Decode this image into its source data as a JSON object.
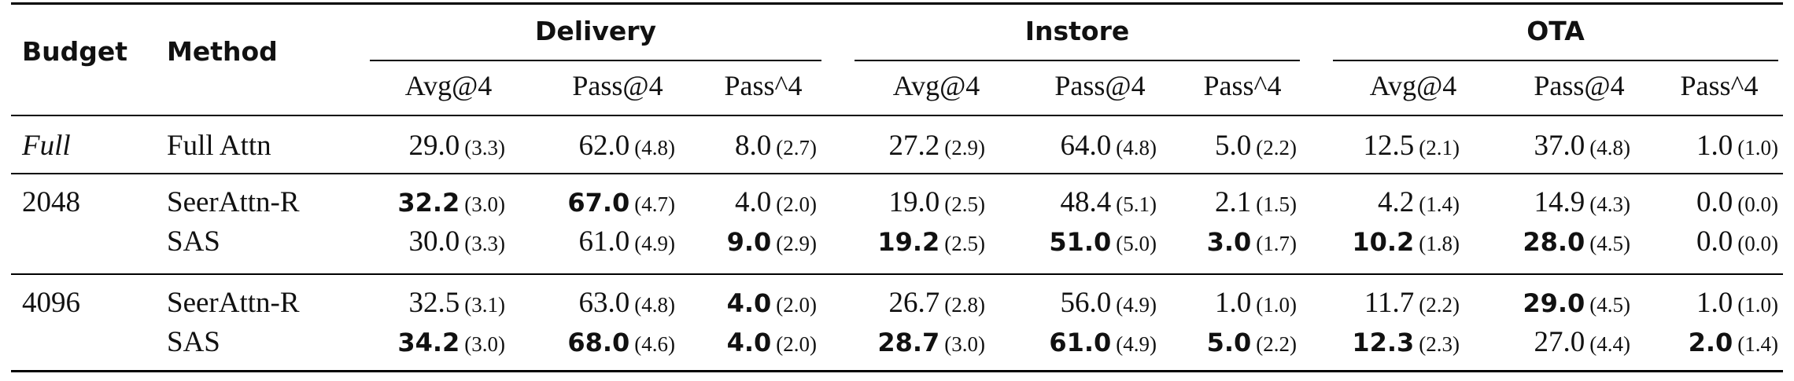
{
  "headers": {
    "budget": "Budget",
    "method": "Method",
    "groups": [
      "Delivery",
      "Instore",
      "OTA"
    ],
    "metrics": [
      "Avg@4",
      "Pass@4",
      "Pass^4"
    ]
  },
  "rows": [
    {
      "budget": "Full",
      "method": "Full Attn",
      "cells": [
        {
          "v": "29.0",
          "se": "(3.3)",
          "b": false
        },
        {
          "v": "62.0",
          "se": "(4.8)",
          "b": false
        },
        {
          "v": "8.0",
          "se": "(2.7)",
          "b": false
        },
        {
          "v": "27.2",
          "se": "(2.9)",
          "b": false
        },
        {
          "v": "64.0",
          "se": "(4.8)",
          "b": false
        },
        {
          "v": "5.0",
          "se": "(2.2)",
          "b": false
        },
        {
          "v": "12.5",
          "se": "(2.1)",
          "b": false
        },
        {
          "v": "37.0",
          "se": "(4.8)",
          "b": false
        },
        {
          "v": "1.0",
          "se": "(1.0)",
          "b": false
        }
      ]
    },
    {
      "budget": "2048",
      "method": "SeerAttn-R",
      "cells": [
        {
          "v": "32.2",
          "se": "(3.0)",
          "b": true
        },
        {
          "v": "67.0",
          "se": "(4.7)",
          "b": true
        },
        {
          "v": "4.0",
          "se": "(2.0)",
          "b": false
        },
        {
          "v": "19.0",
          "se": "(2.5)",
          "b": false
        },
        {
          "v": "48.4",
          "se": "(5.1)",
          "b": false
        },
        {
          "v": "2.1",
          "se": "(1.5)",
          "b": false
        },
        {
          "v": "4.2",
          "se": "(1.4)",
          "b": false
        },
        {
          "v": "14.9",
          "se": "(4.3)",
          "b": false
        },
        {
          "v": "0.0",
          "se": "(0.0)",
          "b": false
        }
      ]
    },
    {
      "budget": "",
      "method": "SAS",
      "cells": [
        {
          "v": "30.0",
          "se": "(3.3)",
          "b": false
        },
        {
          "v": "61.0",
          "se": "(4.9)",
          "b": false
        },
        {
          "v": "9.0",
          "se": "(2.9)",
          "b": true
        },
        {
          "v": "19.2",
          "se": "(2.5)",
          "b": true
        },
        {
          "v": "51.0",
          "se": "(5.0)",
          "b": true
        },
        {
          "v": "3.0",
          "se": "(1.7)",
          "b": true
        },
        {
          "v": "10.2",
          "se": "(1.8)",
          "b": true
        },
        {
          "v": "28.0",
          "se": "(4.5)",
          "b": true
        },
        {
          "v": "0.0",
          "se": "(0.0)",
          "b": false
        }
      ]
    },
    {
      "budget": "4096",
      "method": "SeerAttn-R",
      "cells": [
        {
          "v": "32.5",
          "se": "(3.1)",
          "b": false
        },
        {
          "v": "63.0",
          "se": "(4.8)",
          "b": false
        },
        {
          "v": "4.0",
          "se": "(2.0)",
          "b": true
        },
        {
          "v": "26.7",
          "se": "(2.8)",
          "b": false
        },
        {
          "v": "56.0",
          "se": "(4.9)",
          "b": false
        },
        {
          "v": "1.0",
          "se": "(1.0)",
          "b": false
        },
        {
          "v": "11.7",
          "se": "(2.2)",
          "b": false
        },
        {
          "v": "29.0",
          "se": "(4.5)",
          "b": true
        },
        {
          "v": "1.0",
          "se": "(1.0)",
          "b": false
        }
      ]
    },
    {
      "budget": "",
      "method": "SAS",
      "cells": [
        {
          "v": "34.2",
          "se": "(3.0)",
          "b": true
        },
        {
          "v": "68.0",
          "se": "(4.6)",
          "b": true
        },
        {
          "v": "4.0",
          "se": "(2.0)",
          "b": true
        },
        {
          "v": "28.7",
          "se": "(3.0)",
          "b": true
        },
        {
          "v": "61.0",
          "se": "(4.9)",
          "b": true
        },
        {
          "v": "5.0",
          "se": "(2.2)",
          "b": true
        },
        {
          "v": "12.3",
          "se": "(2.3)",
          "b": true
        },
        {
          "v": "27.0",
          "se": "(4.4)",
          "b": false
        },
        {
          "v": "2.0",
          "se": "(1.4)",
          "b": true
        }
      ]
    }
  ]
}
